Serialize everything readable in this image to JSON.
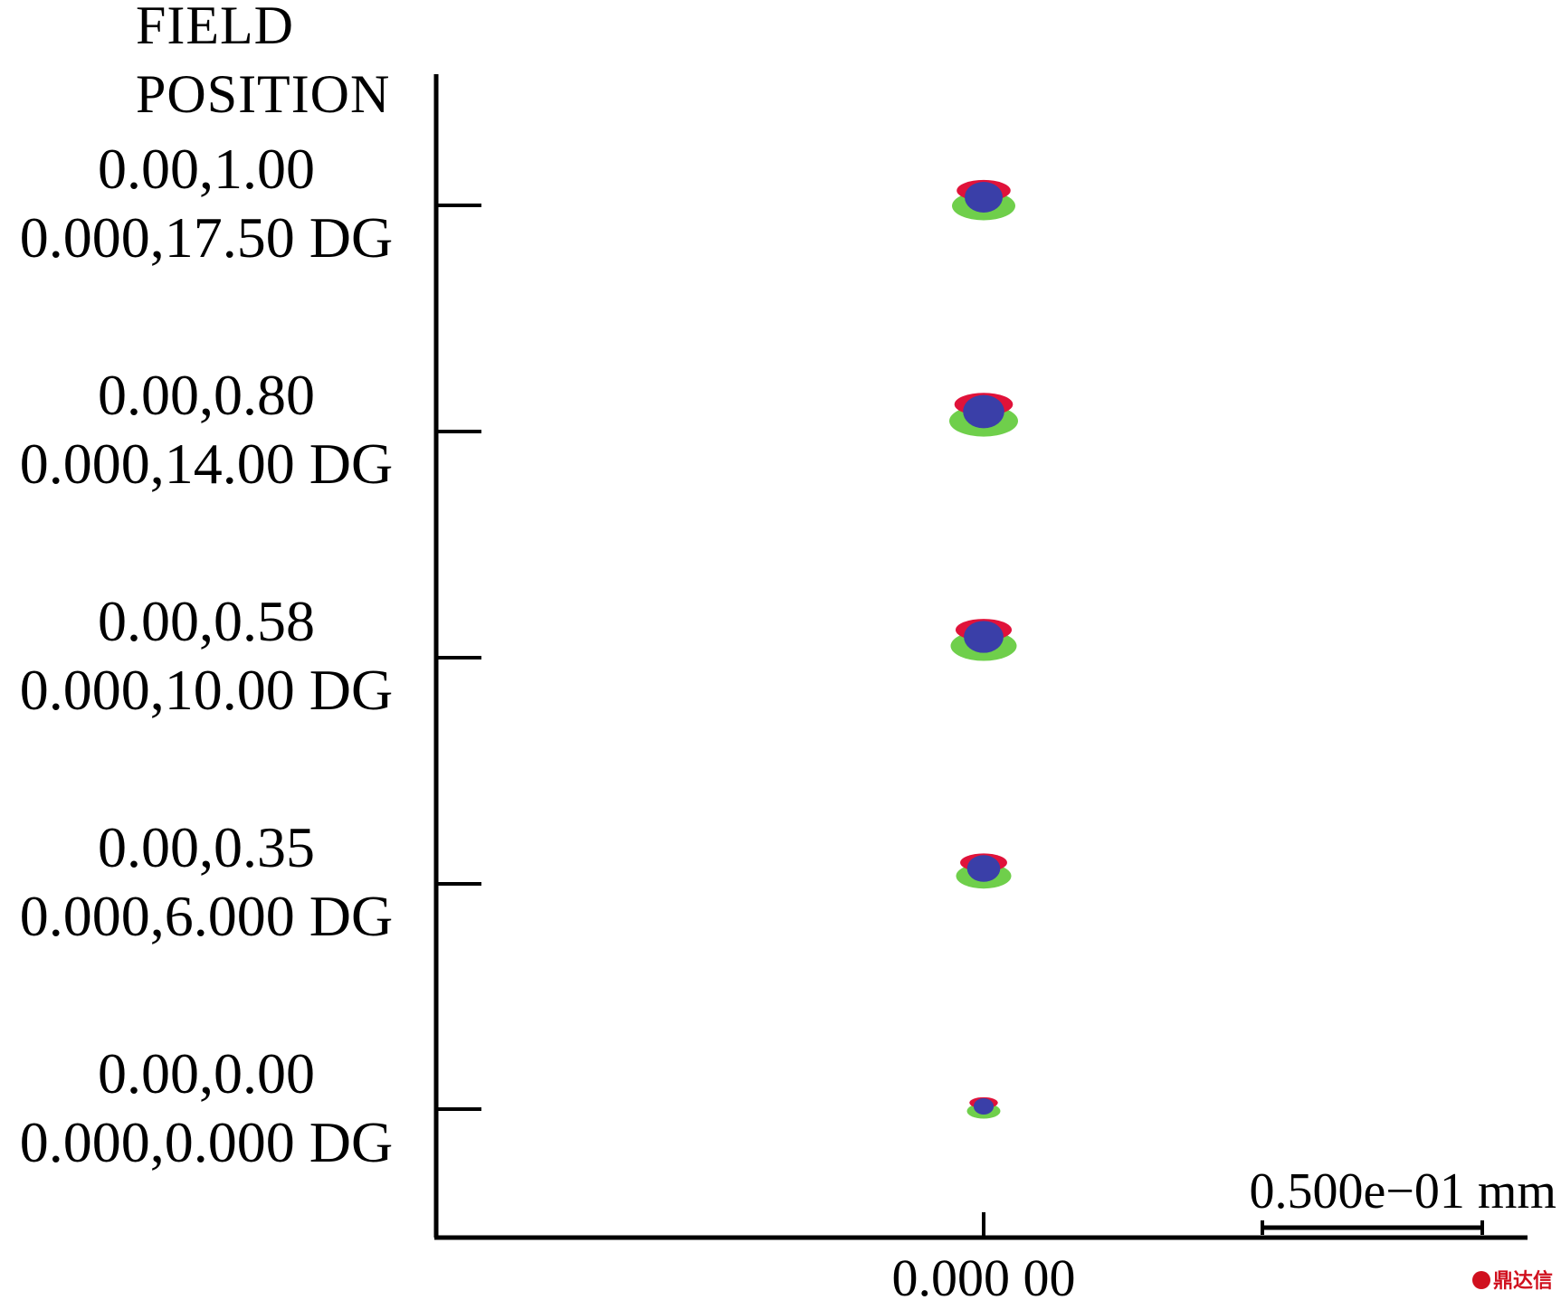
{
  "chart_data": {
    "type": "scatter",
    "header": [
      "FIELD",
      "POSITION"
    ],
    "fields": [
      {
        "rel": "0.00,1.00",
        "angle": "0.000,17.50 DG",
        "spot_level": 0.9
      },
      {
        "rel": "0.00,0.80",
        "angle": "0.000,14.00 DG",
        "spot_level": 1.0
      },
      {
        "rel": "0.00,0.58",
        "angle": "0.000,10.00 DG",
        "spot_level": 0.95
      },
      {
        "rel": "0.00,0.35",
        "angle": "0.000,6.000 DG",
        "spot_level": 0.75
      },
      {
        "rel": "0.00,0.00",
        "angle": "0.000,0.000 DG",
        "spot_level": 0.35
      }
    ],
    "x_tick": "0.000 00",
    "scale_bar": "0.500e−01 mm",
    "wavelength_colors": {
      "short": "#3a3fa8",
      "mid": "#e0123a",
      "long": "#6fcf4b"
    }
  },
  "watermark": "鼎达信"
}
